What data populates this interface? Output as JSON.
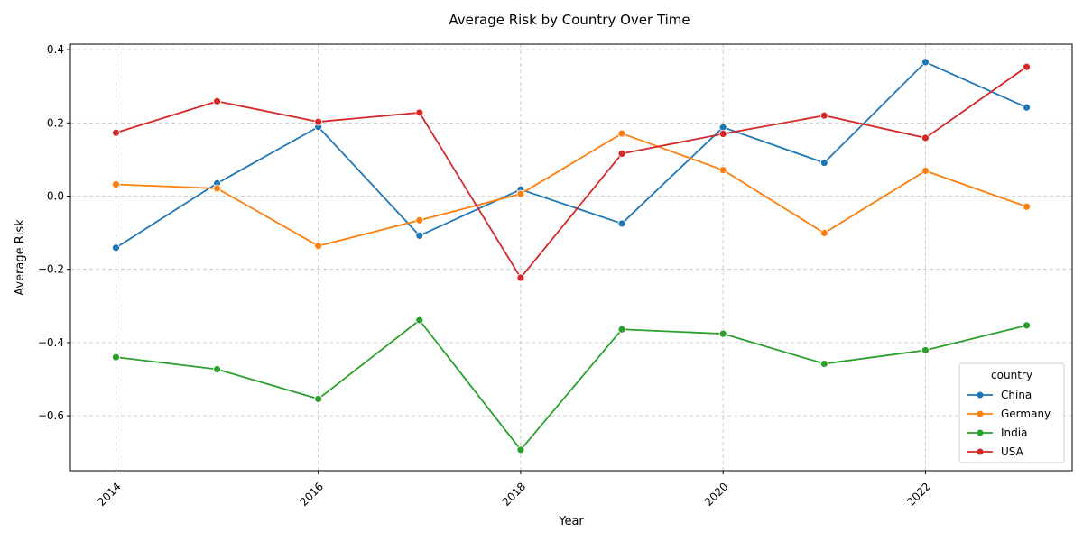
{
  "chart_data": {
    "type": "line",
    "title": "Average Risk by Country Over Time",
    "xlabel": "Year",
    "ylabel": "Average Risk",
    "x": [
      2014,
      2015,
      2016,
      2017,
      2018,
      2019,
      2020,
      2021,
      2022,
      2023
    ],
    "xlim": [
      2013.55,
      2023.45
    ],
    "ylim": [
      -0.75,
      0.415
    ],
    "x_ticks": [
      "2014",
      "2016",
      "2018",
      "2020",
      "2022"
    ],
    "x_tick_values": [
      2014,
      2016,
      2018,
      2020,
      2022
    ],
    "y_ticks": [
      "−0.6",
      "−0.4",
      "−0.2",
      "0.0",
      "0.2",
      "0.4"
    ],
    "y_tick_values": [
      -0.6,
      -0.4,
      -0.2,
      0.0,
      0.2,
      0.4
    ],
    "grid": true,
    "legend": {
      "title": "country",
      "placement": "lower-right"
    },
    "series": [
      {
        "name": "China",
        "color": "#1f77b4",
        "values": [
          -0.141,
          0.035,
          0.189,
          -0.108,
          0.018,
          -0.075,
          0.188,
          0.091,
          0.366,
          0.242
        ]
      },
      {
        "name": "Germany",
        "color": "#ff7f0e",
        "values": [
          0.032,
          0.021,
          -0.136,
          -0.066,
          0.006,
          0.171,
          0.071,
          -0.101,
          0.069,
          -0.029
        ]
      },
      {
        "name": "India",
        "color": "#2ca02c",
        "values": [
          -0.44,
          -0.473,
          -0.554,
          -0.339,
          -0.693,
          -0.364,
          -0.376,
          -0.458,
          -0.421,
          -0.353
        ]
      },
      {
        "name": "USA",
        "color": "#d62728",
        "values": [
          0.173,
          0.259,
          0.203,
          0.228,
          -0.223,
          0.116,
          0.17,
          0.22,
          0.159,
          0.353
        ]
      }
    ]
  }
}
